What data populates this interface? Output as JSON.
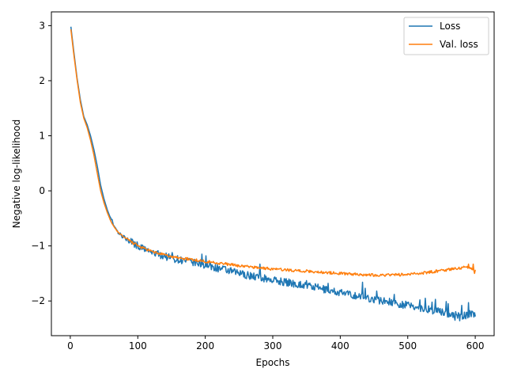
{
  "chart_data": {
    "type": "line",
    "xlabel": "Epochs",
    "ylabel": "Negative log-likelihood",
    "xlim": [
      -28,
      628
    ],
    "ylim": [
      -2.63,
      3.25
    ],
    "xticks": [
      0,
      100,
      200,
      300,
      400,
      500,
      600
    ],
    "yticks": [
      -2,
      -1,
      0,
      1,
      2,
      3
    ],
    "grid": false,
    "legend_position": "top-right",
    "series": [
      {
        "name": "Loss",
        "color": "#1f77b4",
        "anchors": [
          [
            1,
            2.97
          ],
          [
            5,
            2.55
          ],
          [
            10,
            2.05
          ],
          [
            15,
            1.65
          ],
          [
            20,
            1.35
          ],
          [
            25,
            1.2
          ],
          [
            30,
            1.0
          ],
          [
            35,
            0.75
          ],
          [
            40,
            0.45
          ],
          [
            45,
            0.1
          ],
          [
            50,
            -0.15
          ],
          [
            55,
            -0.35
          ],
          [
            60,
            -0.5
          ],
          [
            65,
            -0.65
          ],
          [
            70,
            -0.75
          ],
          [
            80,
            -0.85
          ],
          [
            90,
            -0.92
          ],
          [
            100,
            -1.0
          ],
          [
            120,
            -1.12
          ],
          [
            150,
            -1.22
          ],
          [
            200,
            -1.35
          ],
          [
            250,
            -1.5
          ],
          [
            300,
            -1.62
          ],
          [
            350,
            -1.72
          ],
          [
            400,
            -1.85
          ],
          [
            450,
            -1.97
          ],
          [
            500,
            -2.08
          ],
          [
            550,
            -2.2
          ],
          [
            580,
            -2.28
          ],
          [
            600,
            -2.22
          ]
        ],
        "noise_amplitude": 0.07,
        "spikes": [
          [
            62,
            -0.52
          ],
          [
            92,
            -0.88
          ],
          [
            128,
            -1.1
          ],
          [
            151,
            -1.12
          ],
          [
            183,
            -1.25
          ],
          [
            195,
            -1.15
          ],
          [
            201,
            -1.18
          ],
          [
            252,
            -1.45
          ],
          [
            281,
            -1.33
          ],
          [
            350,
            -1.63
          ],
          [
            382,
            -1.68
          ],
          [
            433,
            -1.66
          ],
          [
            437,
            -1.77
          ],
          [
            454,
            -1.82
          ],
          [
            473,
            -1.95
          ],
          [
            480,
            -1.88
          ],
          [
            518,
            -1.98
          ],
          [
            526,
            -1.95
          ],
          [
            536,
            -2.02
          ],
          [
            541,
            -1.97
          ],
          [
            557,
            -2.01
          ],
          [
            560,
            -2.05
          ],
          [
            580,
            -2.08
          ],
          [
            590,
            -2.03
          ],
          [
            577,
            -2.36
          ],
          [
            570,
            -2.35
          ]
        ]
      },
      {
        "name": "Val. loss",
        "color": "#ff7f0e",
        "anchors": [
          [
            1,
            2.92
          ],
          [
            5,
            2.5
          ],
          [
            10,
            2.02
          ],
          [
            15,
            1.6
          ],
          [
            20,
            1.32
          ],
          [
            25,
            1.15
          ],
          [
            30,
            0.92
          ],
          [
            35,
            0.65
          ],
          [
            40,
            0.32
          ],
          [
            45,
            0.0
          ],
          [
            50,
            -0.22
          ],
          [
            55,
            -0.4
          ],
          [
            60,
            -0.55
          ],
          [
            65,
            -0.66
          ],
          [
            70,
            -0.74
          ],
          [
            80,
            -0.85
          ],
          [
            90,
            -0.92
          ],
          [
            100,
            -1.0
          ],
          [
            120,
            -1.1
          ],
          [
            150,
            -1.2
          ],
          [
            200,
            -1.28
          ],
          [
            250,
            -1.36
          ],
          [
            300,
            -1.42
          ],
          [
            350,
            -1.46
          ],
          [
            400,
            -1.5
          ],
          [
            450,
            -1.53
          ],
          [
            500,
            -1.52
          ],
          [
            530,
            -1.48
          ],
          [
            560,
            -1.43
          ],
          [
            590,
            -1.38
          ],
          [
            600,
            -1.45
          ]
        ],
        "noise_amplitude": 0.025,
        "spikes": [
          [
            590,
            -1.33
          ],
          [
            597,
            -1.33
          ],
          [
            599,
            -1.5
          ]
        ]
      }
    ]
  }
}
